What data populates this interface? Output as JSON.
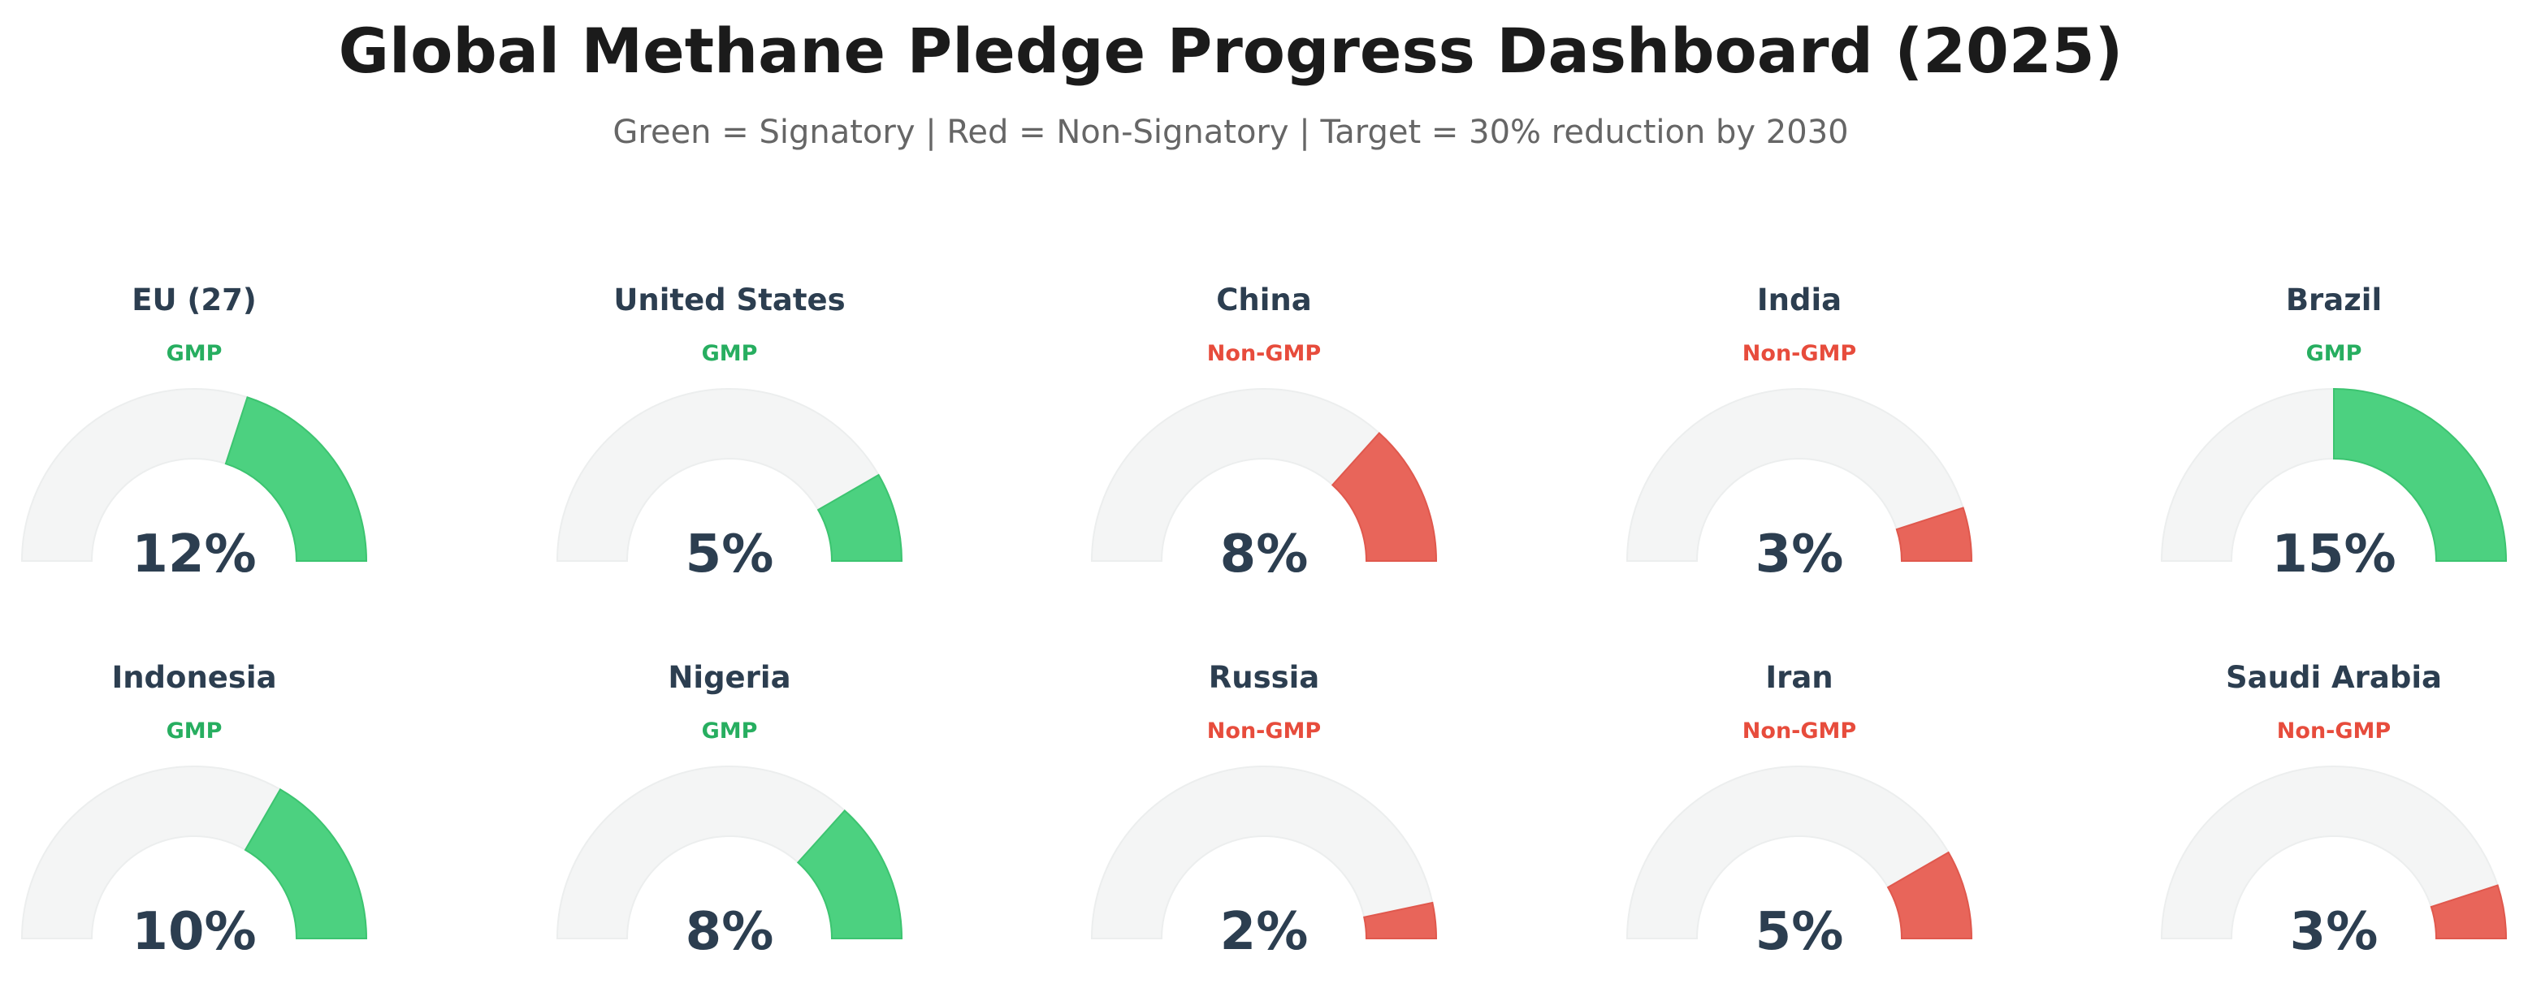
{
  "title": "Global Methane Pledge Progress Dashboard (2025)",
  "subtitle": "Green = Signatory  |  Red = Non-Signatory  |  Target = 30% reduction by 2030",
  "colors": {
    "signatory": "#4cd180",
    "signatory_text": "#27ae60",
    "non_signatory": "#e8655a",
    "non_signatory_text": "#e74c3c",
    "track": "#f4f5f5",
    "value_text": "#2c3e50"
  },
  "chart_data": {
    "type": "gauge",
    "unit": "%",
    "range": [
      0,
      30
    ],
    "items": [
      {
        "name": "EU (27)",
        "status": "GMP",
        "value": 12,
        "label": "12%"
      },
      {
        "name": "United States",
        "status": "GMP",
        "value": 5,
        "label": "5%"
      },
      {
        "name": "China",
        "status": "Non-GMP",
        "value": 8,
        "label": "8%"
      },
      {
        "name": "India",
        "status": "Non-GMP",
        "value": 3,
        "label": "3%"
      },
      {
        "name": "Brazil",
        "status": "GMP",
        "value": 15,
        "label": "15%"
      },
      {
        "name": "Indonesia",
        "status": "GMP",
        "value": 10,
        "label": "10%"
      },
      {
        "name": "Nigeria",
        "status": "GMP",
        "value": 8,
        "label": "8%"
      },
      {
        "name": "Russia",
        "status": "Non-GMP",
        "value": 2,
        "label": "2%"
      },
      {
        "name": "Iran",
        "status": "Non-GMP",
        "value": 5,
        "label": "5%"
      },
      {
        "name": "Saudi Arabia",
        "status": "Non-GMP",
        "value": 3,
        "label": "3%"
      }
    ]
  }
}
